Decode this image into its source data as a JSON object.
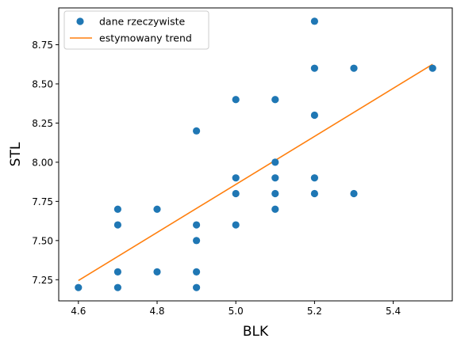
{
  "chart_data": {
    "type": "scatter",
    "xlabel": "BLK",
    "ylabel": "STL",
    "xlim": [
      4.55,
      5.55
    ],
    "ylim": [
      7.115,
      8.985
    ],
    "x_ticks": [
      4.6,
      4.8,
      5.0,
      5.2,
      5.4
    ],
    "x_tick_labels": [
      "4.6",
      "4.8",
      "5.0",
      "5.2",
      "5.4"
    ],
    "y_ticks": [
      7.25,
      7.5,
      7.75,
      8.0,
      8.25,
      8.5,
      8.75
    ],
    "y_tick_labels": [
      "7.25",
      "7.50",
      "7.75",
      "8.00",
      "8.25",
      "8.50",
      "8.75"
    ],
    "grid": false,
    "legend_position": "top-left",
    "series": [
      {
        "name": "dane rzeczywiste",
        "kind": "scatter",
        "color": "#1f77b4",
        "points": [
          [
            4.6,
            7.2
          ],
          [
            4.7,
            7.2
          ],
          [
            4.7,
            7.3
          ],
          [
            4.7,
            7.6
          ],
          [
            4.7,
            7.7
          ],
          [
            4.8,
            7.3
          ],
          [
            4.8,
            7.7
          ],
          [
            4.9,
            7.2
          ],
          [
            4.9,
            7.3
          ],
          [
            4.9,
            7.5
          ],
          [
            4.9,
            7.6
          ],
          [
            4.9,
            8.2
          ],
          [
            5.0,
            7.6
          ],
          [
            5.0,
            7.8
          ],
          [
            5.0,
            7.9
          ],
          [
            5.0,
            8.4
          ],
          [
            5.1,
            7.7
          ],
          [
            5.1,
            7.8
          ],
          [
            5.1,
            7.9
          ],
          [
            5.1,
            8.0
          ],
          [
            5.1,
            8.4
          ],
          [
            5.2,
            7.8
          ],
          [
            5.2,
            7.9
          ],
          [
            5.2,
            8.3
          ],
          [
            5.2,
            8.6
          ],
          [
            5.2,
            8.9
          ],
          [
            5.3,
            7.8
          ],
          [
            5.3,
            8.6
          ],
          [
            5.5,
            8.6
          ]
        ]
      },
      {
        "name": "estymowany trend",
        "kind": "line",
        "color": "#ff7f0e",
        "points": [
          [
            4.6,
            7.245
          ],
          [
            5.5,
            8.625
          ]
        ]
      }
    ]
  }
}
